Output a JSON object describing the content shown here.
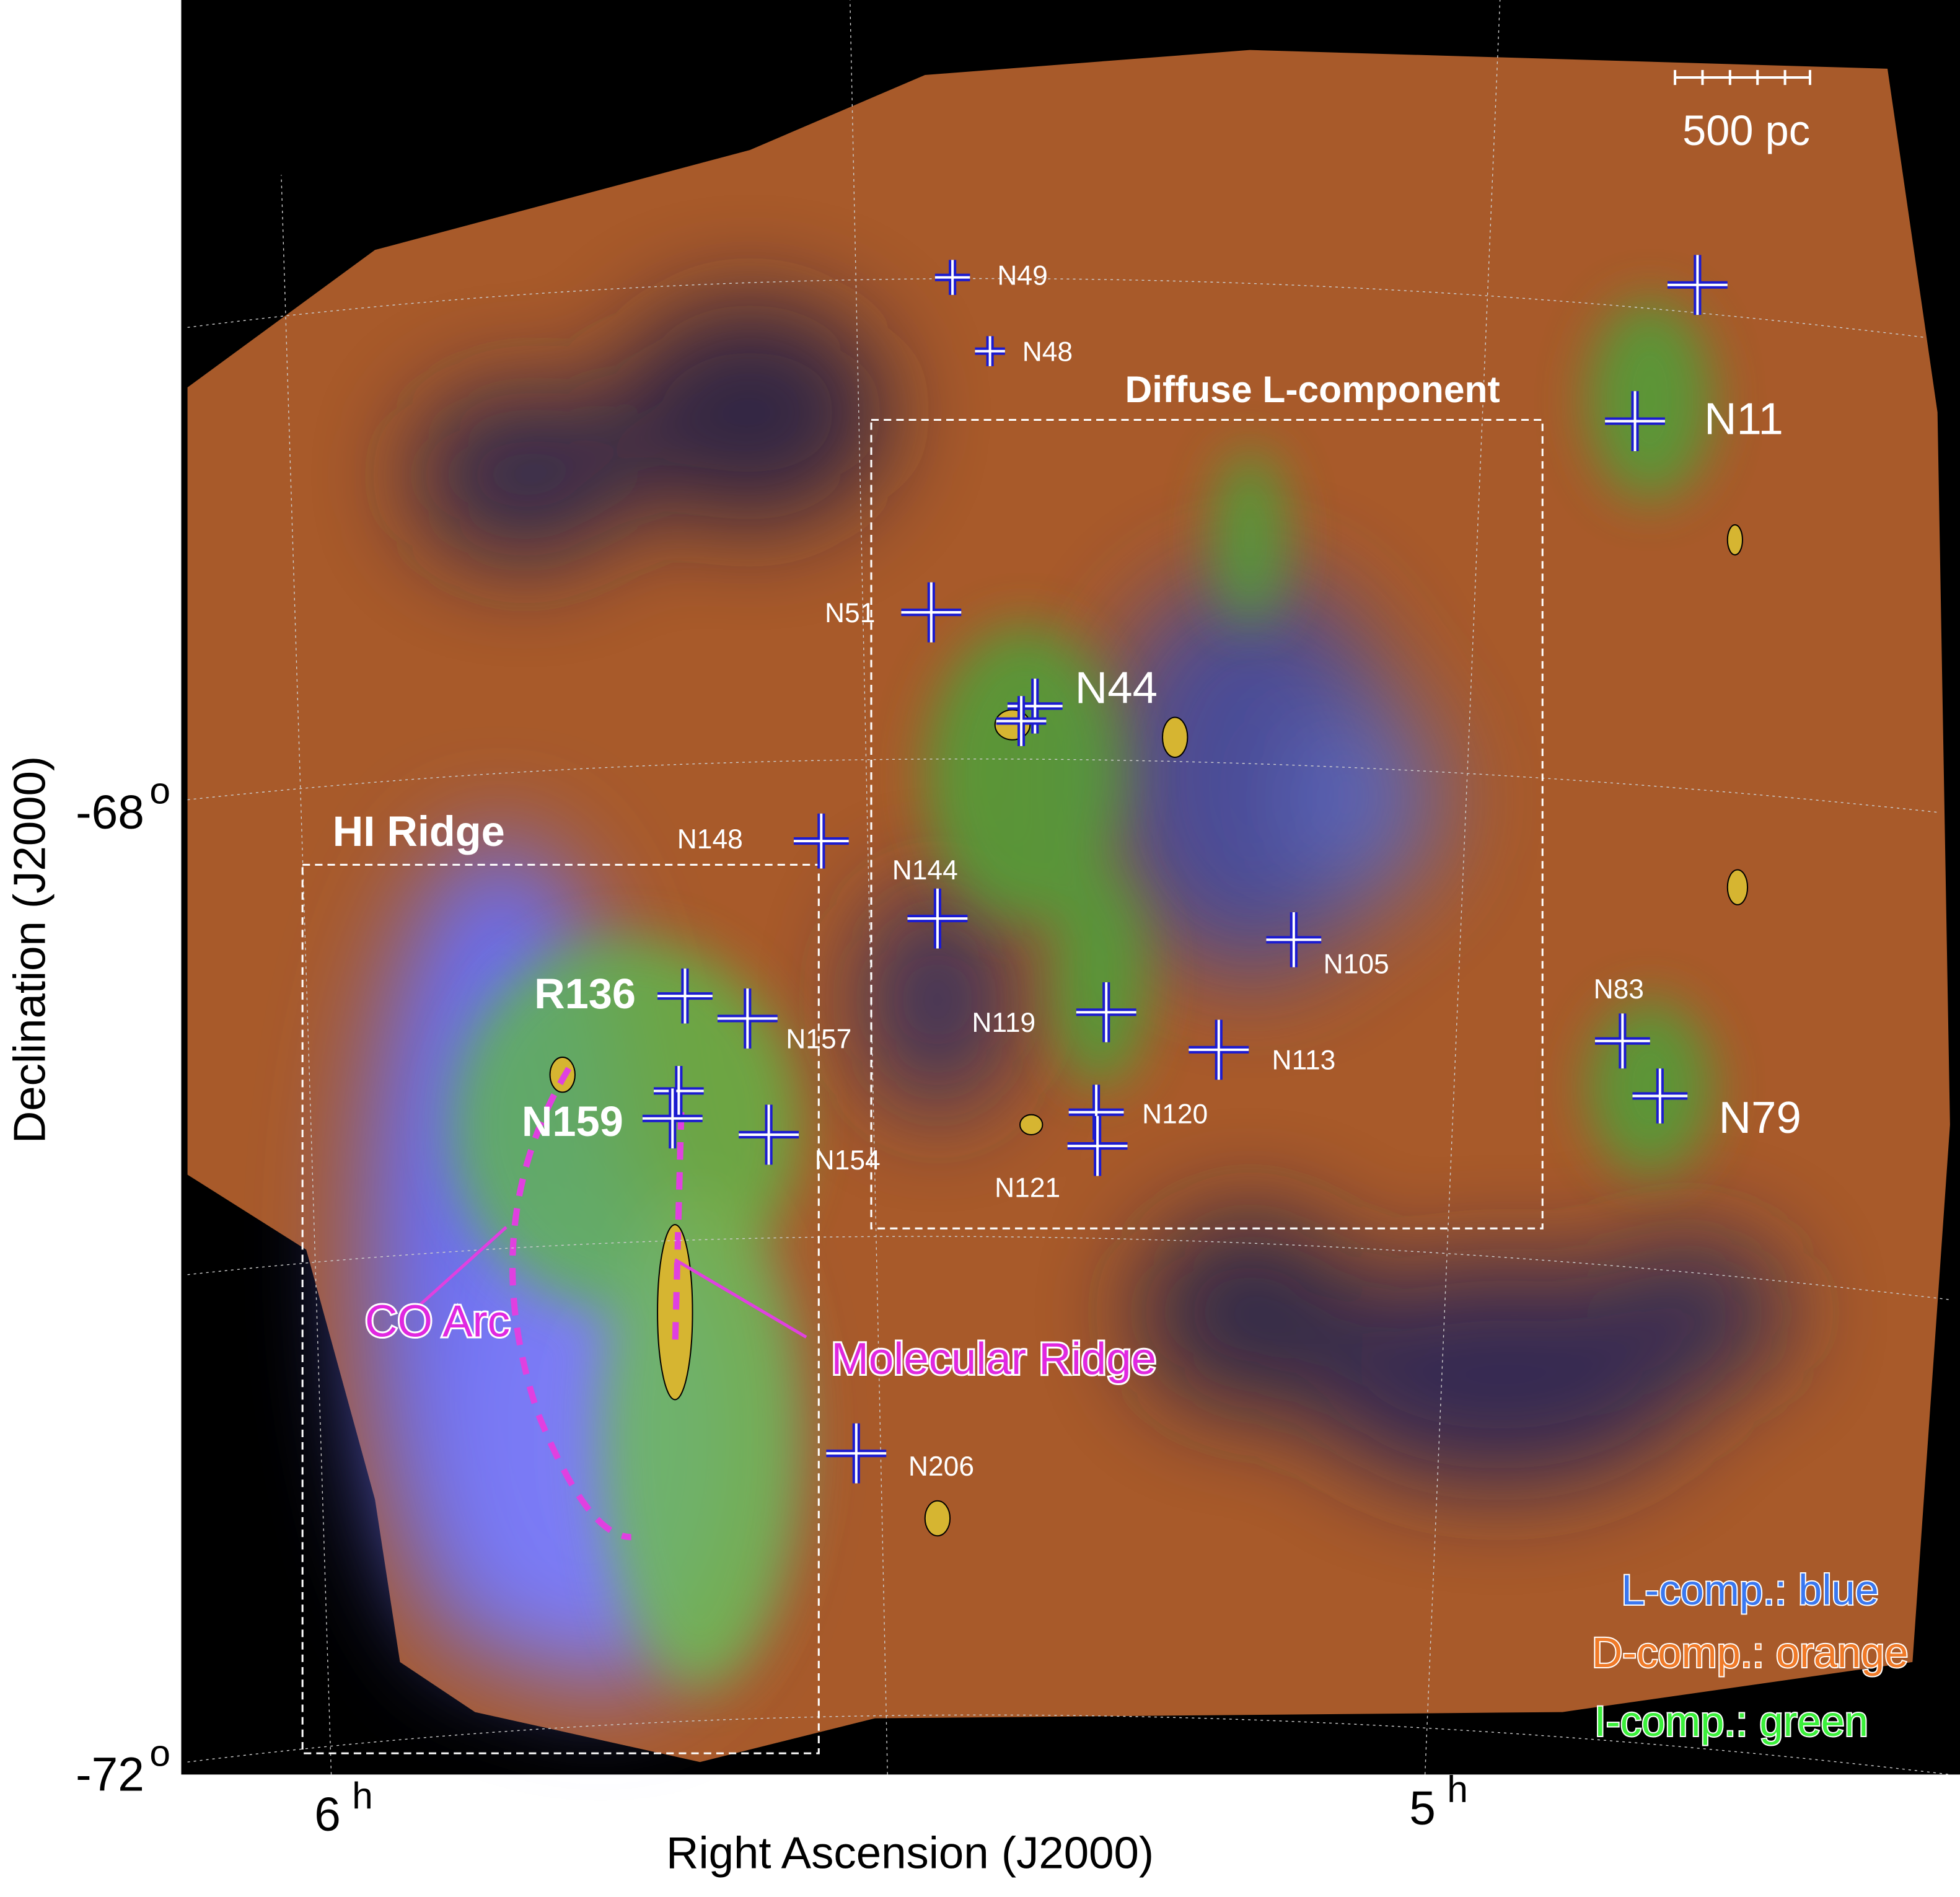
{
  "figure": {
    "x_label": "Right Ascension (J2000)",
    "y_label": "Declination (J2000)",
    "x_ticks": [
      {
        "main": "6",
        "sup": "h"
      },
      {
        "main": "5",
        "sup": "h"
      }
    ],
    "y_ticks": [
      {
        "main": "-68",
        "sup": "o"
      },
      {
        "main": "-72",
        "sup": "o"
      }
    ],
    "scale_bar": "500 pc",
    "labels": [
      "Diffuse L-component",
      "N11",
      "N49",
      "N48",
      "N51",
      "N44",
      "HI Ridge",
      "N148",
      "N144",
      "R136",
      "N157",
      "N119",
      "N105",
      "N113",
      "N83",
      "N79",
      "N159",
      "N154",
      "N120",
      "N121",
      "CO Arc",
      "Molecular Ridge",
      "N206"
    ],
    "legend": [
      "L-comp.: blue",
      "D-comp.: orange",
      "I-comp.: green"
    ]
  }
}
